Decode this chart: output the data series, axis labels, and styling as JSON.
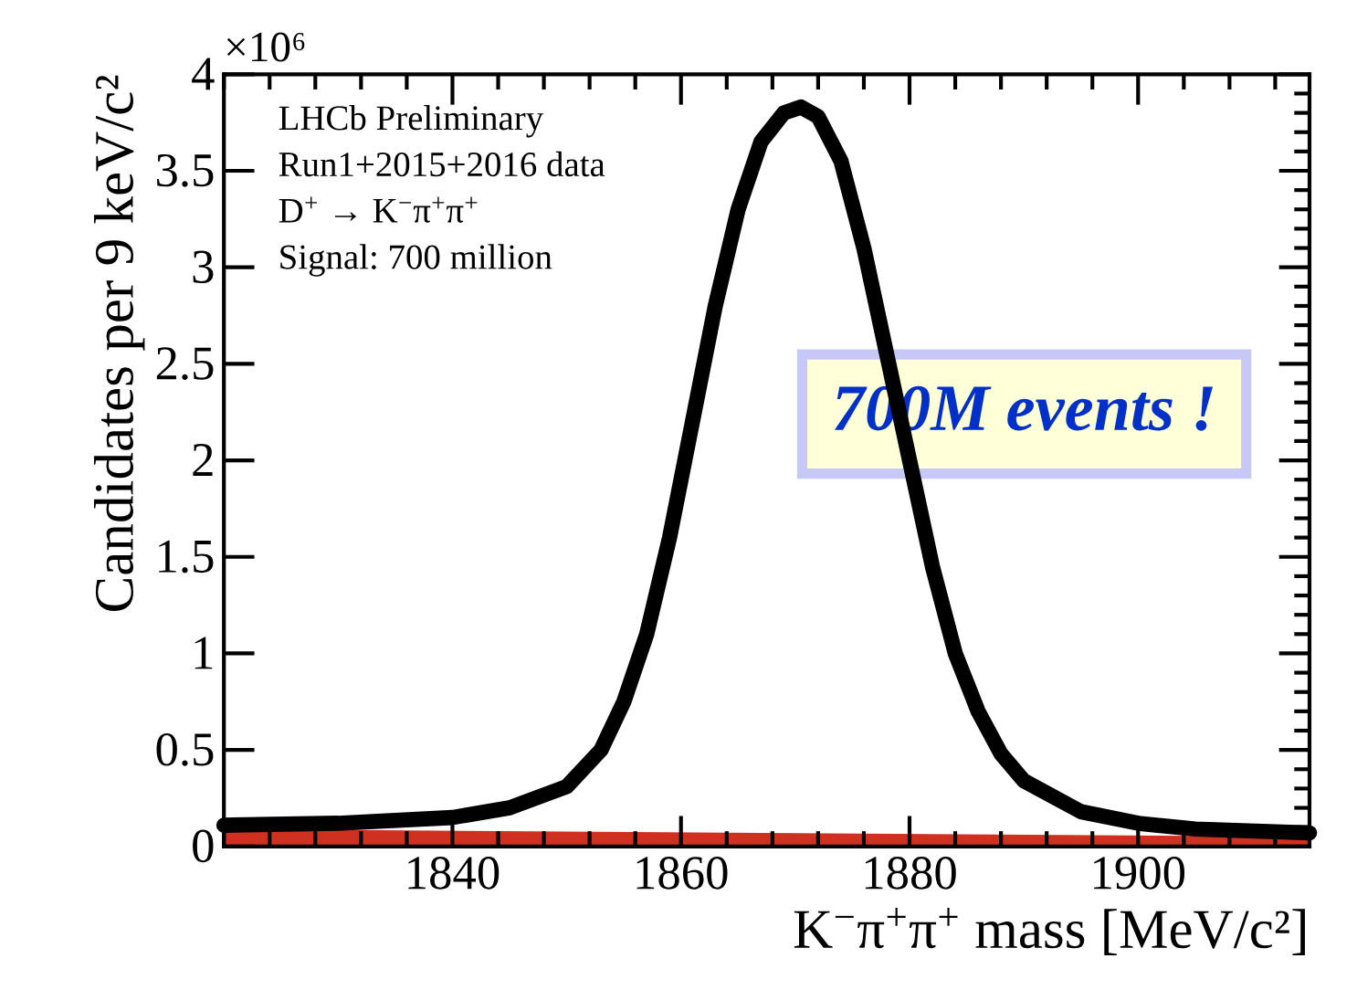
{
  "chart_data": {
    "type": "line",
    "xlabel": "K$^{−}$π$^{+}$π$^{+}$ mass [MeV/c²]",
    "ylabel": "Candidates per 9 keV/c²",
    "xlim": [
      1820,
      1915
    ],
    "xticks": [
      1840,
      1860,
      1880,
      1900
    ],
    "ylim": [
      0,
      4
    ],
    "yticks": [
      0,
      0.5,
      1,
      1.5,
      2,
      2.5,
      3,
      3.5,
      4
    ],
    "grid": false,
    "legend": false,
    "marker": "none",
    "line_style": "solid",
    "series": [
      {
        "type": "area",
        "color": "#d03020",
        "x": [
          1820,
          1915
        ],
        "values": [
          0.09,
          0.05
        ]
      },
      {
        "color": "#000000",
        "x": [
          1820,
          1830,
          1840,
          1845,
          1850,
          1853,
          1855,
          1857,
          1859,
          1861,
          1863,
          1865,
          1867,
          1869,
          1870.5,
          1872,
          1874,
          1876,
          1878,
          1880,
          1882,
          1884,
          1886,
          1888,
          1890,
          1895,
          1900,
          1905,
          1915
        ],
        "values": [
          0.11,
          0.12,
          0.15,
          0.2,
          0.31,
          0.5,
          0.75,
          1.1,
          1.6,
          2.2,
          2.8,
          3.3,
          3.65,
          3.8,
          3.83,
          3.78,
          3.55,
          3.1,
          2.55,
          2.0,
          1.45,
          1.0,
          0.7,
          0.48,
          0.34,
          0.18,
          0.12,
          0.09,
          0.07
        ]
      }
    ],
    "annotations": [
      "×10⁶",
      "LHCb Preliminary",
      "Run1+2015+2016 data",
      "D$^{+}$ → K$^{−}$π$^{+}$π$^{+}$",
      "Signal: 700 million",
      "700M events !"
    ]
  }
}
